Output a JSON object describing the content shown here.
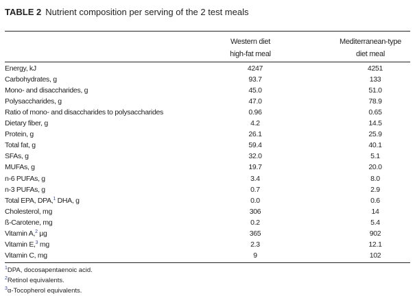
{
  "table": {
    "label": "TABLE 2",
    "caption": "Nutrient composition per serving of the 2 test meals",
    "columns": [
      {
        "line1": "Western diet",
        "line2": "high-fat meal"
      },
      {
        "line1": "Mediterranean-type",
        "line2": "diet meal"
      }
    ],
    "rows": [
      {
        "label": "Energy, kJ",
        "sup": "",
        "suffix": "",
        "v1": "4247",
        "v2": "4251"
      },
      {
        "label": "Carbohydrates, g",
        "sup": "",
        "suffix": "",
        "v1": "93.7",
        "v2": "133"
      },
      {
        "label": "Mono- and disaccharides, g",
        "sup": "",
        "suffix": "",
        "v1": "45.0",
        "v2": "51.0"
      },
      {
        "label": "Polysaccharides, g",
        "sup": "",
        "suffix": "",
        "v1": "47.0",
        "v2": "78.9"
      },
      {
        "label": "Ratio of mono- and disaccharides to polysaccharides",
        "sup": "",
        "suffix": "",
        "v1": "0.96",
        "v2": "0.65"
      },
      {
        "label": "Dietary fiber, g",
        "sup": "",
        "suffix": "",
        "v1": "4.2",
        "v2": "14.5"
      },
      {
        "label": "Protein, g",
        "sup": "",
        "suffix": "",
        "v1": "26.1",
        "v2": "25.9"
      },
      {
        "label": "Total fat, g",
        "sup": "",
        "suffix": "",
        "v1": "59.4",
        "v2": "40.1"
      },
      {
        "label": "SFAs, g",
        "sup": "",
        "suffix": "",
        "v1": "32.0",
        "v2": "5.1"
      },
      {
        "label": "MUFAs, g",
        "sup": "",
        "suffix": "",
        "v1": "19.7",
        "v2": "20.0"
      },
      {
        "label": "n-6 PUFAs, g",
        "sup": "",
        "suffix": "",
        "v1": "3.4",
        "v2": "8.0"
      },
      {
        "label": "n-3 PUFAs, g",
        "sup": "",
        "suffix": "",
        "v1": "0.7",
        "v2": "2.9"
      },
      {
        "label": "Total EPA, DPA,",
        "sup": "1",
        "suffix": " DHA, g",
        "v1": "0.0",
        "v2": "0.6"
      },
      {
        "label": "Cholesterol, mg",
        "sup": "",
        "suffix": "",
        "v1": "306",
        "v2": "14"
      },
      {
        "label": "ß-Carotene, mg",
        "sup": "",
        "suffix": "",
        "v1": "0.2",
        "v2": "5.4"
      },
      {
        "label": "Vitamin A,",
        "sup": "2",
        "suffix": " µg",
        "v1": "365",
        "v2": "902"
      },
      {
        "label": "Vitamin E,",
        "sup": "3",
        "suffix": " mg",
        "v1": "2.3",
        "v2": "12.1"
      },
      {
        "label": "Vitamin C, mg",
        "sup": "",
        "suffix": "",
        "v1": "9",
        "v2": "102"
      }
    ],
    "footnotes": [
      {
        "mark": "1",
        "text": "DPA, docosapentaenoic acid."
      },
      {
        "mark": "2",
        "text": "Retinol equivalents."
      },
      {
        "mark": "3",
        "text": "α-Tocopherol equivalents."
      }
    ]
  }
}
